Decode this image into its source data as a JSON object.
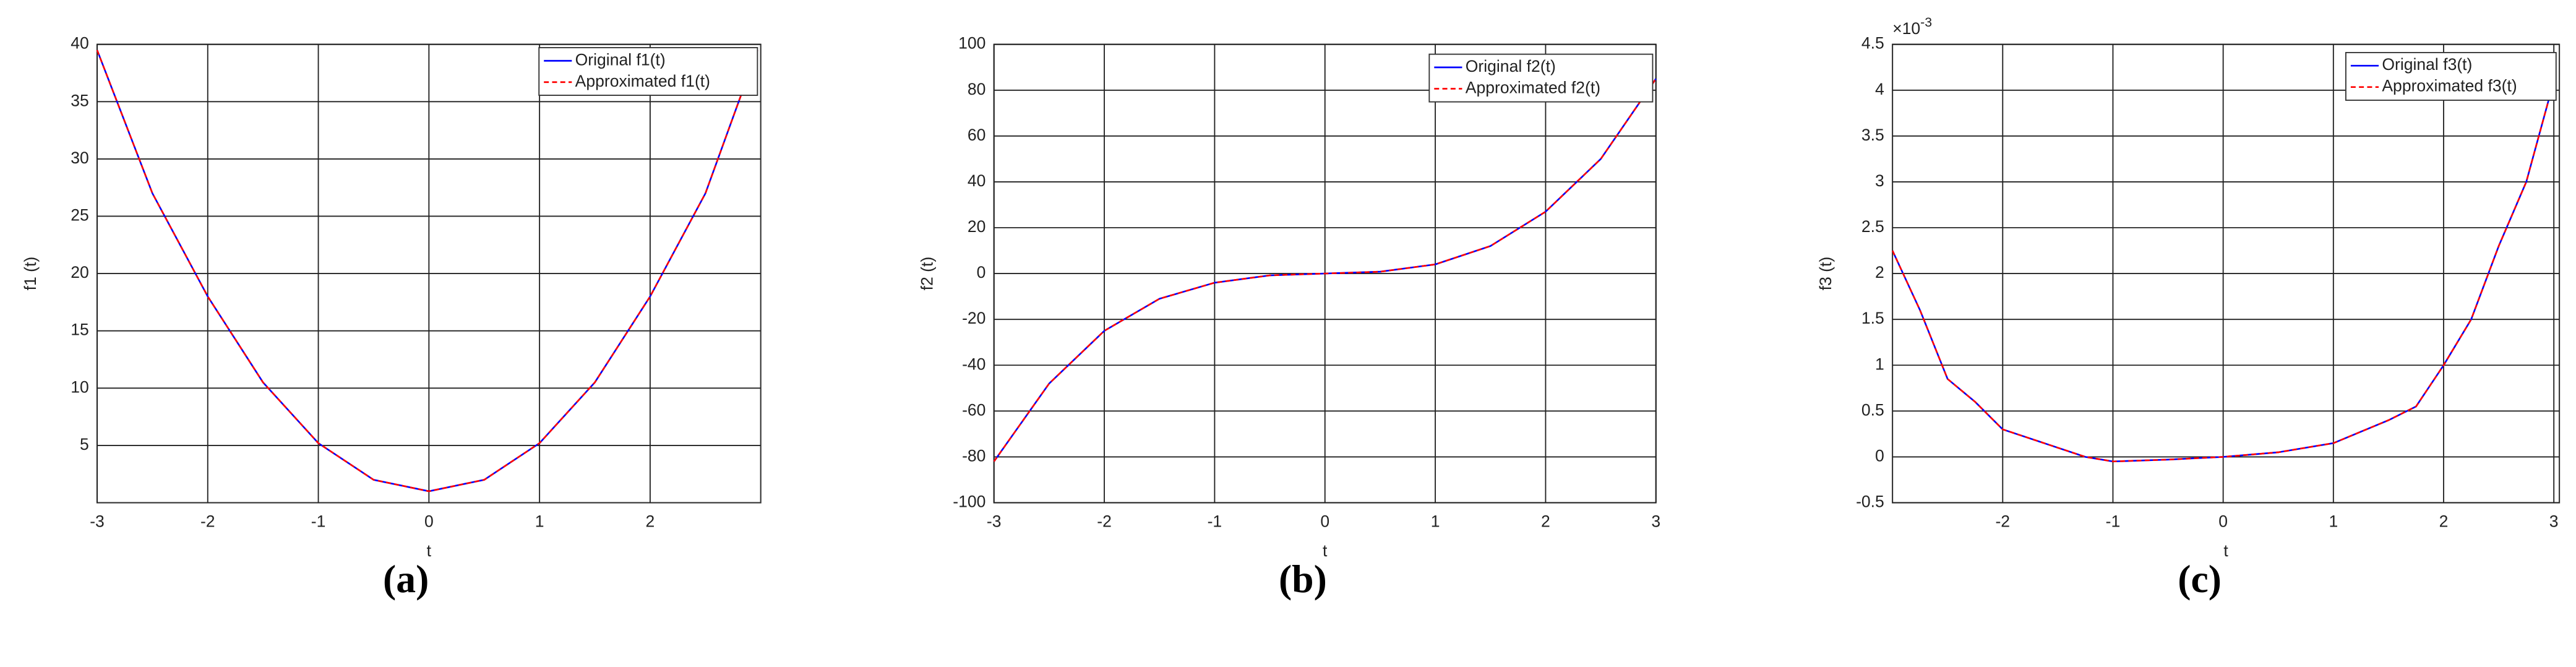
{
  "chart_data": [
    {
      "type": "line",
      "caption": "(a)",
      "xlabel": "t",
      "ylabel": "f1 (t)",
      "x": [
        -3,
        -2.5,
        -2,
        -1.5,
        -1,
        -0.5,
        0,
        0.5,
        1,
        1.5,
        2,
        2.5,
        2.97
      ],
      "series": [
        {
          "name": "Original f1(t)",
          "color": "#0000ff",
          "linestyle": "solid",
          "values": [
            39.5,
            27,
            18,
            10.5,
            5.2,
            2,
            1,
            2,
            5.2,
            10.5,
            18,
            27,
            39.5
          ]
        },
        {
          "name": "Approximated f1(t)",
          "color": "#ff0000",
          "linestyle": "dashed",
          "values": [
            39.5,
            27,
            18,
            10.5,
            5.2,
            2,
            1,
            2,
            5.2,
            10.5,
            18,
            27,
            39.5
          ]
        }
      ],
      "xlim": [
        -3,
        3
      ],
      "ylim": [
        0,
        40
      ],
      "xticks": [
        -3,
        -2,
        -1,
        0,
        1,
        2
      ],
      "yticks": [
        5,
        10,
        15,
        20,
        25,
        30,
        35,
        40
      ],
      "grid": true,
      "legend": "upper right"
    },
    {
      "type": "line",
      "caption": "(b)",
      "xlabel": "t",
      "ylabel": "f2 (t)",
      "x": [
        -3,
        -2.5,
        -2,
        -1.5,
        -1,
        -0.5,
        0,
        0.5,
        1,
        1.5,
        2,
        2.5,
        3
      ],
      "series": [
        {
          "name": "Original f2(t)",
          "color": "#0000ff",
          "linestyle": "solid",
          "values": [
            -82,
            -48,
            -25,
            -11,
            -4,
            -0.8,
            0,
            0.8,
            4,
            12,
            27,
            50,
            85
          ]
        },
        {
          "name": "Approximated f2(t)",
          "color": "#ff0000",
          "linestyle": "dashed",
          "values": [
            -82,
            -48,
            -25,
            -11,
            -4,
            -0.8,
            0,
            0.8,
            4,
            12,
            27,
            50,
            85
          ]
        }
      ],
      "xlim": [
        -3,
        3
      ],
      "ylim": [
        -100,
        100
      ],
      "xticks": [
        -3,
        -2,
        -1,
        0,
        1,
        2,
        3
      ],
      "yticks": [
        -100,
        -80,
        -60,
        -40,
        -20,
        0,
        20,
        40,
        60,
        80,
        100
      ],
      "grid": true,
      "legend": "upper right"
    },
    {
      "type": "line",
      "caption": "(c)",
      "xlabel": "t",
      "ylabel": "f3 (t)",
      "y_multiplier_base": "×10",
      "y_multiplier_exponent": "-3",
      "x": [
        -3,
        -2.75,
        -2.5,
        -2.25,
        -2,
        -1.75,
        -1.5,
        -1.25,
        -1,
        -0.5,
        0,
        0.5,
        1,
        1.5,
        1.75,
        2,
        2.25,
        2.5,
        2.75,
        3
      ],
      "series": [
        {
          "name": "Original f3(t)",
          "color": "#0000ff",
          "linestyle": "solid",
          "values": [
            2.25,
            1.6,
            0.85,
            0.6,
            0.3,
            0.2,
            0.1,
            0,
            -0.05,
            -0.03,
            0,
            0.05,
            0.15,
            0.4,
            0.55,
            1,
            1.5,
            2.3,
            3,
            4.1
          ]
        },
        {
          "name": "Approximated f3(t)",
          "color": "#ff0000",
          "linestyle": "dashed",
          "values": [
            2.25,
            1.6,
            0.85,
            0.6,
            0.3,
            0.2,
            0.1,
            0,
            -0.05,
            -0.03,
            0,
            0.05,
            0.15,
            0.4,
            0.55,
            1,
            1.5,
            2.3,
            3,
            4.1
          ]
        }
      ],
      "xlim": [
        -3,
        3.05
      ],
      "ylim": [
        -0.5,
        4.5
      ],
      "xticks": [
        -2,
        -1,
        0,
        1,
        2,
        3
      ],
      "yticks": [
        -0.5,
        0,
        0.5,
        1,
        1.5,
        2,
        2.5,
        3,
        3.5,
        4,
        4.5
      ],
      "grid": true,
      "legend": "upper right"
    }
  ]
}
